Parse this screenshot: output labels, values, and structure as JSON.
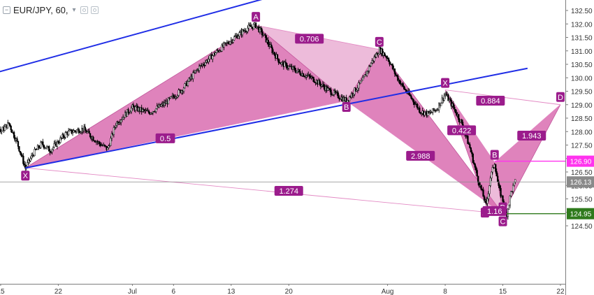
{
  "header": {
    "collapse_glyph": "−",
    "symbol_label": "EUR/JPY, 60,",
    "dropdown_glyph": "▾",
    "icons": [
      "settings-icon",
      "visibility-icon"
    ]
  },
  "colors": {
    "background": "#ffffff",
    "candle": "#000000",
    "pattern_fill": "#d868ad",
    "pattern_stroke": "#c0569a",
    "ratio_line": "#e38ac4",
    "label_bg": "#9b1c8c",
    "channel": "#1f2de6",
    "price_axis_line": "#7d7d7d",
    "current_price_line": "#8a8a8a",
    "level_magenta": "#ff33ee",
    "level_green": "#2f7a1c",
    "axis_text": "#333333"
  },
  "chart_data": {
    "type": "candlestick",
    "symbol": "EUR/JPY",
    "timeframe": "60",
    "xlim": [
      "Jun 11",
      "Aug 24"
    ],
    "ylim": [
      124.45,
      132.7
    ],
    "x_ticks": [
      {
        "label": "15",
        "date": "Jun 15"
      },
      {
        "label": "22",
        "date": "Jun 22"
      },
      {
        "label": "Jul",
        "date": "Jul 1"
      },
      {
        "label": "6",
        "date": "Jul 6"
      },
      {
        "label": "13",
        "date": "Jul 13"
      },
      {
        "label": "20",
        "date": "Jul 20"
      },
      {
        "label": "Aug",
        "date": "Aug 1"
      },
      {
        "label": "8",
        "date": "Aug 8"
      },
      {
        "label": "15",
        "date": "Aug 15"
      },
      {
        "label": "22",
        "date": "Aug 22"
      }
    ],
    "y_ticks": [
      "132.50",
      "132.00",
      "131.50",
      "131.00",
      "130.50",
      "130.00",
      "129.50",
      "129.00",
      "128.50",
      "128.00",
      "127.50",
      "127.00",
      "126.50",
      "126.00",
      "125.50",
      "125.00",
      "124.50"
    ],
    "price_path": [
      {
        "date": "Jun 11",
        "price": 129.75
      },
      {
        "date": "Jun 12",
        "price": 130.05
      },
      {
        "date": "Jun 13",
        "price": 130.2
      },
      {
        "date": "Jun 14",
        "price": 129.6
      },
      {
        "date": "Jun 14.5",
        "price": 128.4
      },
      {
        "date": "Jun 15",
        "price": 128.0
      },
      {
        "date": "Jun 16",
        "price": 128.3
      },
      {
        "date": "Jun 17",
        "price": 127.6
      },
      {
        "date": "Jun 18",
        "price": 126.65
      },
      {
        "date": "Jun 19",
        "price": 127.2
      },
      {
        "date": "Jun 20",
        "price": 127.55
      },
      {
        "date": "Jun 21",
        "price": 127.3
      },
      {
        "date": "Jun 23",
        "price": 127.95
      },
      {
        "date": "Jun 25",
        "price": 128.1
      },
      {
        "date": "Jun 27",
        "price": 127.55
      },
      {
        "date": "Jun 28",
        "price": 127.35
      },
      {
        "date": "Jun 29",
        "price": 128.3
      },
      {
        "date": "Jul 1",
        "price": 128.9
      },
      {
        "date": "Jul 3",
        "price": 128.7
      },
      {
        "date": "Jul 5",
        "price": 129.05
      },
      {
        "date": "Jul 7",
        "price": 129.55
      },
      {
        "date": "Jul 9",
        "price": 130.35
      },
      {
        "date": "Jul 11",
        "price": 130.9
      },
      {
        "date": "Jul 13",
        "price": 131.4
      },
      {
        "date": "Jul 15",
        "price": 131.85
      },
      {
        "date": "Jul 16",
        "price": 131.95
      },
      {
        "date": "Jul 17",
        "price": 131.55
      },
      {
        "date": "Jul 18",
        "price": 131.0
      },
      {
        "date": "Jul 19",
        "price": 130.55
      },
      {
        "date": "Jul 21",
        "price": 130.25
      },
      {
        "date": "Jul 23",
        "price": 129.95
      },
      {
        "date": "Jul 25",
        "price": 129.5
      },
      {
        "date": "Jul 27",
        "price": 129.15
      },
      {
        "date": "Jul 29",
        "price": 129.9
      },
      {
        "date": "Jul 30",
        "price": 130.55
      },
      {
        "date": "Jul 31",
        "price": 131.05
      },
      {
        "date": "Aug 1",
        "price": 130.75
      },
      {
        "date": "Aug 2",
        "price": 130.1
      },
      {
        "date": "Aug 3",
        "price": 129.6
      },
      {
        "date": "Aug 4",
        "price": 129.2
      },
      {
        "date": "Aug 5",
        "price": 128.75
      },
      {
        "date": "Aug 6",
        "price": 128.65
      },
      {
        "date": "Aug 7",
        "price": 128.85
      },
      {
        "date": "Aug 8",
        "price": 129.4
      },
      {
        "date": "Aug 9",
        "price": 128.9
      },
      {
        "date": "Aug 10",
        "price": 128.3
      },
      {
        "date": "Aug 11",
        "price": 127.4
      },
      {
        "date": "Aug 12",
        "price": 126.2
      },
      {
        "date": "Aug 13",
        "price": 125.25
      },
      {
        "date": "Aug 13.5",
        "price": 126.3
      },
      {
        "date": "Aug 14",
        "price": 126.85
      },
      {
        "date": "Aug 14.5",
        "price": 125.9
      },
      {
        "date": "Aug 15",
        "price": 125.45
      },
      {
        "date": "Aug 15.5",
        "price": 124.95
      },
      {
        "date": "Aug 16",
        "price": 125.75
      },
      {
        "date": "Aug 16.5",
        "price": 126.13
      }
    ],
    "pattern_1": {
      "points": [
        {
          "label": "X",
          "date": "Jun 18",
          "price": 126.65
        },
        {
          "label": "A",
          "date": "Jul 16",
          "price": 131.95
        },
        {
          "label": "B",
          "date": "Jul 27",
          "price": 129.15
        },
        {
          "label": "C",
          "date": "Jul 31",
          "price": 131.05
        },
        {
          "label": "D",
          "date": "Aug 15",
          "price": 124.95
        }
      ],
      "ratios": [
        {
          "label": "0.706",
          "between": [
            "A",
            "C"
          ],
          "date": "Jul 22.5",
          "price": 131.45
        },
        {
          "label": "0.5",
          "between": [
            "X",
            "B"
          ],
          "date": "Jul 5",
          "price": 127.75
        },
        {
          "label": "2.988",
          "between": [
            "B",
            "D"
          ],
          "date": "Aug 5",
          "price": 127.1
        },
        {
          "label": "1.274",
          "between": [
            "X",
            "D"
          ],
          "date": "Jul 20",
          "price": 125.8
        }
      ]
    },
    "pattern_2": {
      "points": [
        {
          "label": "X",
          "date": "Aug 8",
          "price": 129.55
        },
        {
          "label": "A",
          "date": "Aug 13",
          "price": 125.25
        },
        {
          "label": "B",
          "date": "Aug 14",
          "price": 126.85
        },
        {
          "label": "C",
          "date": "Aug 15",
          "price": 124.95
        },
        {
          "label": "D",
          "date": "Aug 22",
          "price": 129.0
        }
      ],
      "ratios": [
        {
          "label": "0.884",
          "between": [
            "X",
            "D"
          ],
          "date": "Aug 13.5",
          "price": 129.15
        },
        {
          "label": "0.422",
          "between": [
            "X",
            "B"
          ],
          "date": "Aug 10",
          "price": 128.05
        },
        {
          "label": "1.943",
          "between": [
            "B",
            "D"
          ],
          "date": "Aug 18.5",
          "price": 127.85
        },
        {
          "label": "1.16",
          "between": [
            "A",
            "C"
          ],
          "date": "Aug 14",
          "price": 125.05
        }
      ]
    },
    "channel_lines": [
      {
        "from": {
          "date": "Jun 11",
          "price": 129.9
        },
        "to": {
          "date": "Aug 1",
          "price": 134.2
        }
      },
      {
        "from": {
          "date": "Jun 18",
          "price": 126.65
        },
        "to": {
          "date": "Aug 18",
          "price": 130.35
        }
      }
    ],
    "price_levels": [
      {
        "price": 126.9,
        "label": "126.90",
        "color_key": "level_magenta",
        "from_date": "Aug 14"
      },
      {
        "price": 126.13,
        "label": "126.13",
        "color_key": "current_price_line",
        "from_date": "Jun 11"
      },
      {
        "price": 124.95,
        "label": "124.95",
        "color_key": "level_green",
        "from_date": "Aug 15"
      }
    ]
  }
}
